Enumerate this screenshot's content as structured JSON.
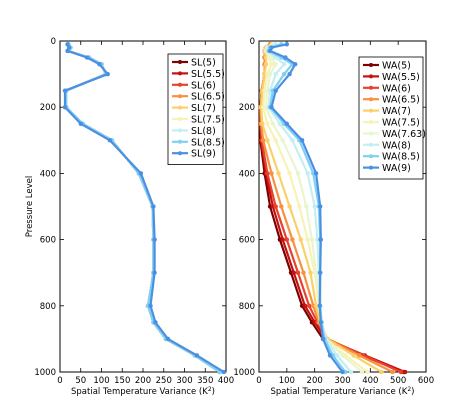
{
  "chart_data": [
    {
      "type": "line",
      "xlabel": "Spatial Temperature Variance (K$^2$)",
      "xlabel_text": "Spatial Temperature Variance (K",
      "xlabel_sup": "2",
      "xlabel_close": ")",
      "ylabel": "Pressure Level",
      "xlim": [
        0,
        400
      ],
      "ylim": [
        1000,
        0
      ],
      "y_inverted": true,
      "xticks": [
        0,
        50,
        100,
        150,
        200,
        250,
        300,
        350,
        400
      ],
      "yticks": [
        0,
        200,
        400,
        600,
        800,
        1000
      ],
      "legend_placement": "top-right",
      "grid": false,
      "y": [
        10,
        20,
        30,
        50,
        70,
        100,
        150,
        200,
        250,
        300,
        400,
        500,
        600,
        700,
        800,
        850,
        900,
        950,
        1000
      ],
      "series": [
        {
          "name": "SL(5)",
          "color": "#7f0000",
          "values": [
            20,
            25,
            20,
            70,
            100,
            110,
            15,
            15,
            55,
            125,
            190,
            223,
            225,
            225,
            212,
            225,
            255,
            325,
            385
          ]
        },
        {
          "name": "SL(5.5)",
          "color": "#c5100e",
          "values": [
            20,
            25,
            20,
            70,
            100,
            110,
            15,
            15,
            55,
            125,
            190,
            223,
            225,
            225,
            212,
            225,
            255,
            325,
            385
          ]
        },
        {
          "name": "SL(6)",
          "color": "#e8412d",
          "values": [
            20,
            25,
            20,
            70,
            100,
            110,
            15,
            15,
            55,
            125,
            190,
            223,
            225,
            225,
            212,
            225,
            255,
            325,
            385
          ]
        },
        {
          "name": "SL(6.5)",
          "color": "#f8913d",
          "values": [
            20,
            25,
            20,
            70,
            100,
            110,
            15,
            15,
            55,
            125,
            190,
            223,
            225,
            225,
            212,
            225,
            255,
            325,
            385
          ]
        },
        {
          "name": "SL(7)",
          "color": "#fcd068",
          "values": [
            20,
            25,
            20,
            70,
            100,
            110,
            15,
            15,
            55,
            125,
            190,
            223,
            225,
            225,
            212,
            225,
            255,
            325,
            385
          ]
        },
        {
          "name": "SL(7.5)",
          "color": "#f6f3b4",
          "values": [
            20,
            25,
            20,
            70,
            100,
            110,
            15,
            15,
            55,
            125,
            190,
            223,
            225,
            225,
            212,
            225,
            255,
            325,
            385
          ]
        },
        {
          "name": "SL(8)",
          "color": "#c4eef2",
          "values": [
            20,
            25,
            20,
            70,
            100,
            110,
            15,
            15,
            55,
            125,
            190,
            223,
            225,
            225,
            212,
            225,
            255,
            325,
            385
          ]
        },
        {
          "name": "SL(8.5)",
          "color": "#7fd0f4",
          "values": [
            20,
            25,
            20,
            70,
            100,
            110,
            15,
            15,
            55,
            125,
            190,
            223,
            225,
            225,
            212,
            225,
            255,
            325,
            385
          ]
        },
        {
          "name": "SL(9)",
          "color": "#4a90e2",
          "values": [
            18,
            22,
            18,
            65,
            95,
            115,
            12,
            12,
            50,
            120,
            195,
            225,
            228,
            228,
            218,
            230,
            260,
            330,
            395
          ]
        }
      ]
    },
    {
      "type": "line",
      "xlabel": "Spatial Temperature Variance (K$^2$)",
      "xlabel_text": "Spatial Temperature Variance (K",
      "xlabel_sup": "2",
      "xlabel_close": ")",
      "ylabel": "",
      "xlim": [
        0,
        600
      ],
      "ylim": [
        1000,
        0
      ],
      "y_inverted": true,
      "xticks": [
        0,
        100,
        200,
        300,
        400,
        500,
        600
      ],
      "yticks": [
        0,
        200,
        400,
        600,
        800,
        1000
      ],
      "legend_placement": "top-right",
      "grid": false,
      "y": [
        10,
        20,
        30,
        50,
        70,
        100,
        150,
        200,
        250,
        300,
        400,
        500,
        600,
        700,
        800,
        850,
        900,
        950,
        1000
      ],
      "series": [
        {
          "name": "WA(5)",
          "color": "#7f0000",
          "values": [
            40,
            25,
            20,
            20,
            20,
            20,
            10,
            5,
            5,
            5,
            20,
            40,
            75,
            115,
            155,
            190,
            230,
            370,
            520
          ]
        },
        {
          "name": "WA(5.5)",
          "color": "#c5100e",
          "values": [
            40,
            25,
            20,
            20,
            20,
            20,
            10,
            5,
            5,
            8,
            25,
            50,
            85,
            125,
            165,
            200,
            240,
            380,
            525
          ]
        },
        {
          "name": "WA(6)",
          "color": "#e8412d",
          "values": [
            40,
            25,
            20,
            20,
            20,
            20,
            10,
            5,
            5,
            10,
            30,
            60,
            100,
            140,
            180,
            210,
            245,
            375,
            510
          ]
        },
        {
          "name": "WA(6.5)",
          "color": "#f8913d",
          "values": [
            40,
            25,
            20,
            20,
            20,
            20,
            10,
            5,
            8,
            15,
            45,
            80,
            120,
            160,
            195,
            215,
            245,
            360,
            480
          ]
        },
        {
          "name": "WA(7)",
          "color": "#fcd068",
          "values": [
            45,
            25,
            20,
            25,
            25,
            20,
            12,
            8,
            12,
            30,
            70,
            110,
            150,
            185,
            205,
            220,
            245,
            340,
            440
          ]
        },
        {
          "name": "WA(7.5)",
          "color": "#f6f3b4",
          "values": [
            50,
            30,
            25,
            35,
            45,
            30,
            20,
            15,
            30,
            60,
            110,
            145,
            175,
            200,
            215,
            225,
            240,
            310,
            390
          ]
        },
        {
          "name": "WA(7.63)",
          "color": "#e9f5cf",
          "values": [
            55,
            30,
            25,
            45,
            60,
            40,
            30,
            25,
            50,
            85,
            140,
            170,
            190,
            205,
            220,
            225,
            240,
            300,
            370
          ]
        },
        {
          "name": "WA(8)",
          "color": "#c4eef2",
          "values": [
            60,
            35,
            30,
            60,
            90,
            60,
            40,
            35,
            75,
            120,
            175,
            200,
            210,
            215,
            220,
            225,
            240,
            280,
            330
          ]
        },
        {
          "name": "WA(8.5)",
          "color": "#7fd0f4",
          "values": [
            80,
            40,
            35,
            80,
            120,
            90,
            50,
            40,
            90,
            145,
            195,
            215,
            220,
            220,
            220,
            225,
            235,
            265,
            310
          ]
        },
        {
          "name": "WA(9)",
          "color": "#4a90e2",
          "values": [
            100,
            45,
            40,
            95,
            130,
            110,
            60,
            45,
            100,
            155,
            205,
            220,
            222,
            220,
            218,
            222,
            230,
            255,
            300
          ]
        }
      ]
    }
  ]
}
